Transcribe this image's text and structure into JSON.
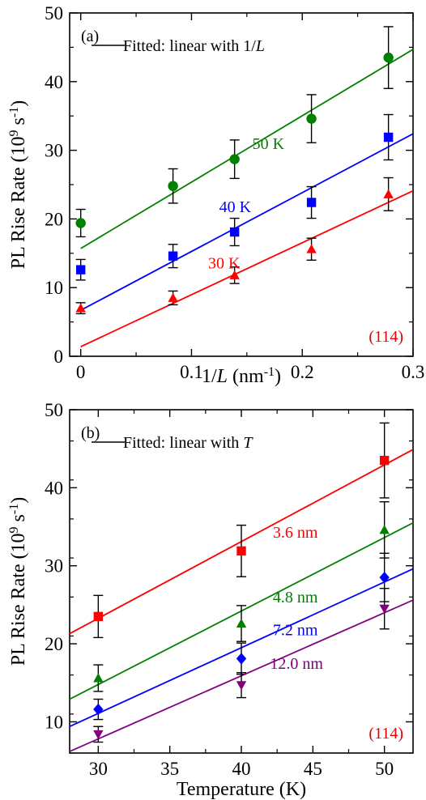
{
  "chart_data": [
    {
      "type": "scatter",
      "panel_tag": "(a)",
      "legend": "Fitted: linear with 1/L",
      "legend_prefix": "Fitted: linear with 1/",
      "legend_var": "L",
      "corner_note": "(114)",
      "corner_note_color": "#e00000",
      "xlabel": "1/L (nm⁻¹)",
      "xlabel_parts": [
        "1/",
        "L",
        " (nm",
        "-1",
        ")"
      ],
      "ylabel": "PL Rise Rate (10⁹ s⁻¹)",
      "ylabel_parts": [
        "PL Rise Rate (10",
        "9",
        " s",
        "-1",
        ")"
      ],
      "xlim": [
        -0.01,
        0.3
      ],
      "ylim": [
        0,
        50
      ],
      "xticks": [
        0,
        0.1,
        0.2,
        0.3
      ],
      "xtick_labels": [
        "0",
        "0.1",
        "0.2",
        "0.3"
      ],
      "yticks": [
        0,
        10,
        20,
        30,
        40,
        50
      ],
      "ytick_labels": [
        "0",
        "10",
        "20",
        "30",
        "40",
        "50"
      ],
      "grid": false,
      "legend_position": "top-left",
      "series": [
        {
          "name": "50 K",
          "color": "#008000",
          "marker": "circle",
          "x": [
            0,
            0.0833,
            0.1389,
            0.2083,
            0.2778
          ],
          "y": [
            19.4,
            24.8,
            28.7,
            34.6,
            43.5
          ],
          "err": [
            2.0,
            2.5,
            2.8,
            3.5,
            4.5
          ],
          "fit": {
            "x": [
              0,
              0.3
            ],
            "y": [
              15.7,
              44.7
            ]
          }
        },
        {
          "name": "40 K",
          "color": "#0000ff",
          "marker": "square",
          "x": [
            0,
            0.0833,
            0.1389,
            0.2083,
            0.2778
          ],
          "y": [
            12.6,
            14.6,
            18.1,
            22.4,
            31.9
          ],
          "err": [
            1.5,
            1.7,
            2.0,
            2.3,
            3.3
          ],
          "fit": {
            "x": [
              0,
              0.3
            ],
            "y": [
              6.7,
              32.4
            ]
          }
        },
        {
          "name": "30 K",
          "color": "#ff0000",
          "marker": "triangle",
          "x": [
            0,
            0.0833,
            0.1389,
            0.2083,
            0.2778
          ],
          "y": [
            7.0,
            8.5,
            11.8,
            15.6,
            23.6
          ],
          "err": [
            0.8,
            1.0,
            1.2,
            1.6,
            2.4
          ],
          "fit": {
            "x": [
              0,
              0.3
            ],
            "y": [
              1.4,
              24.1
            ]
          }
        }
      ]
    },
    {
      "type": "scatter",
      "panel_tag": "(b)",
      "legend": "Fitted: linear with T",
      "legend_prefix": "Fitted: linear with ",
      "legend_var": "T",
      "corner_note": "(114)",
      "corner_note_color": "#e00000",
      "xlabel": "Temperature (K)",
      "ylabel": "PL Rise Rate (10⁹ s⁻¹)",
      "ylabel_parts": [
        "PL Rise Rate (10",
        "9",
        " s",
        "-1",
        ")"
      ],
      "xlim": [
        28,
        52
      ],
      "ylim": [
        6,
        50
      ],
      "xticks": [
        30,
        35,
        40,
        45,
        50
      ],
      "xtick_labels": [
        "30",
        "35",
        "40",
        "45",
        "50"
      ],
      "yticks": [
        10,
        20,
        30,
        40,
        50
      ],
      "ytick_labels": [
        "10",
        "20",
        "30",
        "40",
        "50"
      ],
      "grid": false,
      "legend_position": "top-left",
      "series": [
        {
          "name": "3.6 nm",
          "color": "#ff0000",
          "marker": "square",
          "x": [
            30,
            40,
            50
          ],
          "y": [
            23.5,
            31.9,
            43.5
          ],
          "err": [
            2.7,
            3.3,
            4.8
          ],
          "fit": {
            "x": [
              28,
              52
            ],
            "y": [
              21.3,
              44.9
            ]
          }
        },
        {
          "name": "4.8 nm",
          "color": "#008000",
          "marker": "triangle",
          "x": [
            30,
            40,
            50
          ],
          "y": [
            15.6,
            22.6,
            34.6
          ],
          "err": [
            1.7,
            2.3,
            3.6
          ],
          "fit": {
            "x": [
              28,
              52
            ],
            "y": [
              12.9,
              35.5
            ]
          }
        },
        {
          "name": "7.2 nm",
          "color": "#0000ff",
          "marker": "diamond",
          "x": [
            30,
            40,
            50
          ],
          "y": [
            11.6,
            18.1,
            28.5
          ],
          "err": [
            1.3,
            2.0,
            3.1
          ],
          "fit": {
            "x": [
              28,
              52
            ],
            "y": [
              9.4,
              29.6
            ]
          }
        },
        {
          "name": "12.0 nm",
          "color": "#800080",
          "marker": "triangle-down",
          "x": [
            30,
            40,
            50
          ],
          "y": [
            8.4,
            14.7,
            24.5
          ],
          "err": [
            1.0,
            1.6,
            2.6
          ],
          "fit": {
            "x": [
              28,
              52
            ],
            "y": [
              6.2,
              25.6
            ]
          }
        }
      ]
    }
  ]
}
